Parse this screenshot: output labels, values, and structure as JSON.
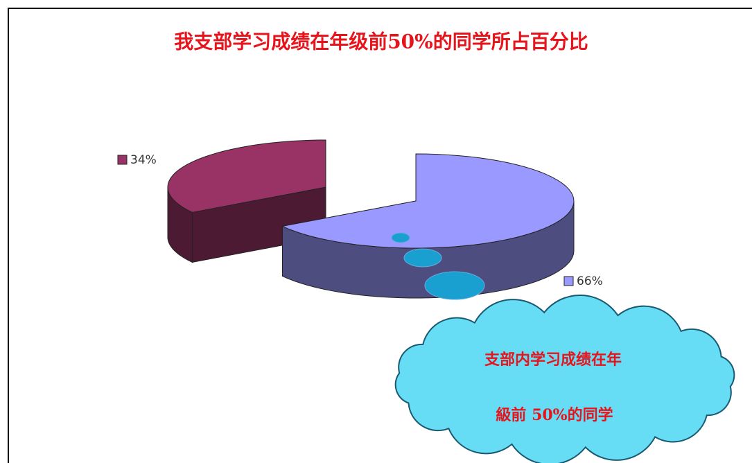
{
  "chart_data": {
    "type": "pie3d",
    "title": "我支部学习成绩在年级前50%的同学所占百分比",
    "values": [
      66,
      34
    ],
    "value_labels": [
      "66%",
      "34%"
    ],
    "colors": [
      "#9999ff",
      "#993366"
    ],
    "annotation": [
      "支部内学习成绩在年",
      "級前 50%的同学"
    ]
  }
}
